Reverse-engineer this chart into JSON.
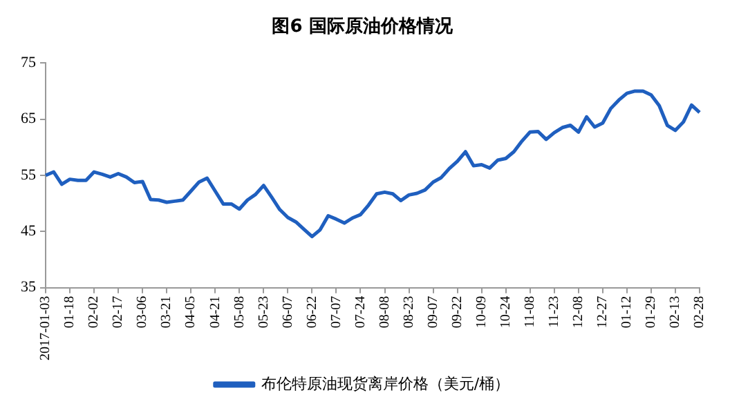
{
  "chart_data": {
    "type": "line",
    "title": "图6 国际原油价格情况",
    "categories": [
      "2017-01-03",
      null,
      null,
      "01-18",
      null,
      null,
      "02-02",
      null,
      null,
      "02-17",
      null,
      null,
      "03-06",
      null,
      null,
      "03-21",
      null,
      null,
      "04-05",
      null,
      null,
      "04-21",
      null,
      null,
      "05-08",
      null,
      null,
      "05-23",
      null,
      null,
      "06-07",
      null,
      null,
      "06-22",
      null,
      null,
      "07-07",
      null,
      null,
      "07-24",
      null,
      null,
      "08-08",
      null,
      null,
      "08-23",
      null,
      null,
      "09-07",
      null,
      null,
      "09-22",
      null,
      null,
      "10-09",
      null,
      null,
      "10-24",
      null,
      null,
      "11-08",
      null,
      null,
      "11-23",
      null,
      null,
      "12-08",
      null,
      null,
      "12-27",
      null,
      null,
      "01-12",
      null,
      null,
      "01-29",
      null,
      null,
      "02-13",
      null,
      null,
      "02-28"
    ],
    "series": [
      {
        "name": "布伦特原油现货离岸价格（美元/桶）",
        "color": "#1f5fbf",
        "values": [
          55,
          55.6,
          53.4,
          54.3,
          54.1,
          54.1,
          55.6,
          55.2,
          54.7,
          55.3,
          54.7,
          53.7,
          53.9,
          50.7,
          50.6,
          50.2,
          50.4,
          50.6,
          52.2,
          53.8,
          54.5,
          52.2,
          49.9,
          49.9,
          49,
          50.6,
          51.6,
          53.2,
          51.1,
          48.9,
          47.5,
          46.7,
          45.4,
          44.1,
          45.3,
          47.8,
          47.2,
          46.5,
          47.4,
          48,
          49.7,
          51.7,
          52,
          51.7,
          50.5,
          51.5,
          51.8,
          52.4,
          53.8,
          54.6,
          56.2,
          57.5,
          59.2,
          56.7,
          56.9,
          56.3,
          57.7,
          58,
          59.2,
          61.1,
          62.7,
          62.8,
          61.4,
          62.6,
          63.5,
          63.9,
          62.7,
          65.4,
          63.6,
          64.3,
          66.9,
          68.4,
          69.6,
          70,
          70,
          69.3,
          67.4,
          63.9,
          63,
          64.5,
          67.5,
          66.2
        ]
      }
    ],
    "ylim": [
      35,
      75
    ],
    "yticks": [
      35,
      45,
      55,
      65,
      75
    ],
    "grid": false,
    "legend": "bottom",
    "marker": "none",
    "line_style": "solid"
  }
}
